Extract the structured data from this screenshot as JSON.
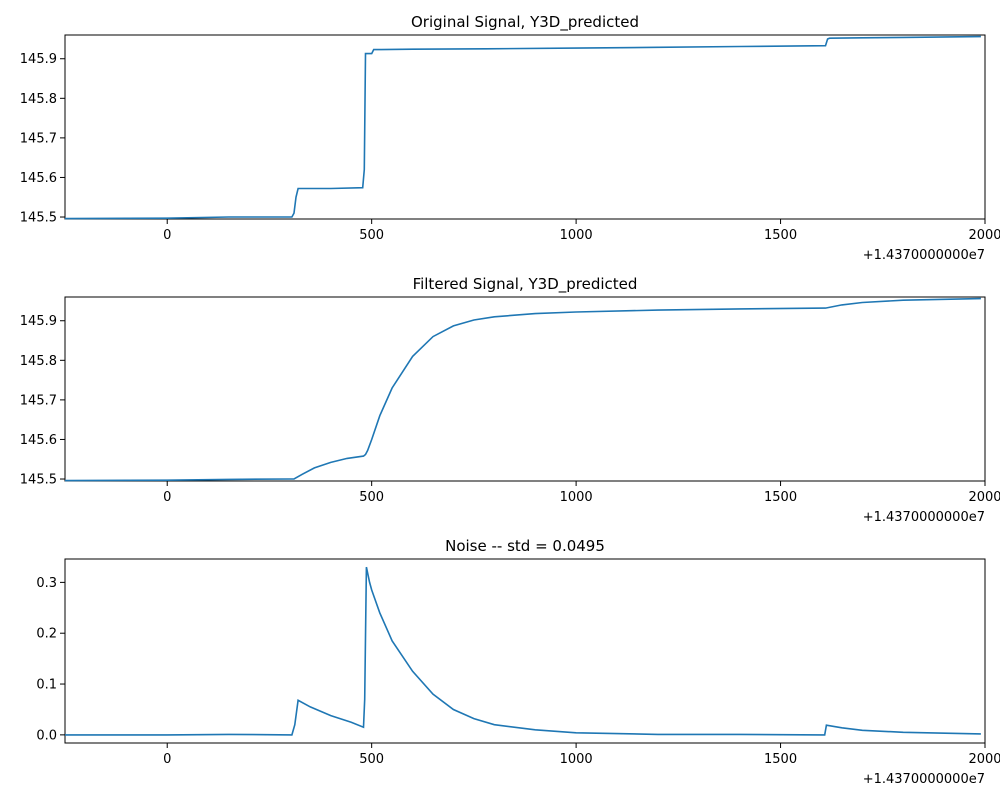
{
  "colors": {
    "line": "#1f77b4",
    "axes": "#000000",
    "background": "#ffffff"
  },
  "chart_data": [
    {
      "type": "line",
      "title": "Original Signal, Y3D_predicted",
      "xlabel": "",
      "ylabel": "",
      "x_offset_label": "+1.4370000000e7",
      "xlim": [
        -250,
        2000
      ],
      "ylim": [
        145.495,
        145.96
      ],
      "xticks": [
        0,
        500,
        1000,
        1500,
        2000
      ],
      "xtick_labels": [
        "0",
        "500",
        "1000",
        "1500",
        "2000"
      ],
      "yticks": [
        145.5,
        145.6,
        145.7,
        145.8,
        145.9
      ],
      "ytick_labels": [
        "145.5",
        "145.6",
        "145.7",
        "145.8",
        "145.9"
      ],
      "grid": false,
      "series": [
        {
          "x": [
            -250,
            0,
            150,
            250,
            305,
            310,
            315,
            320,
            400,
            478,
            482,
            485,
            490,
            500,
            505,
            600,
            780,
            1000,
            1200,
            1400,
            1610,
            1615,
            1620,
            1700,
            1800,
            1990
          ],
          "y": [
            145.496,
            145.497,
            145.5,
            145.5,
            145.5,
            145.51,
            145.55,
            145.572,
            145.572,
            145.574,
            145.62,
            145.913,
            145.913,
            145.913,
            145.923,
            145.924,
            145.925,
            145.927,
            145.929,
            145.931,
            145.933,
            145.95,
            145.952,
            145.953,
            145.954,
            145.956
          ]
        }
      ]
    },
    {
      "type": "line",
      "title": "Filtered Signal, Y3D_predicted",
      "xlabel": "",
      "ylabel": "",
      "x_offset_label": "+1.4370000000e7",
      "xlim": [
        -250,
        2000
      ],
      "ylim": [
        145.495,
        145.96
      ],
      "xticks": [
        0,
        500,
        1000,
        1500,
        2000
      ],
      "xtick_labels": [
        "0",
        "500",
        "1000",
        "1500",
        "2000"
      ],
      "yticks": [
        145.5,
        145.6,
        145.7,
        145.8,
        145.9
      ],
      "ytick_labels": [
        "145.5",
        "145.6",
        "145.7",
        "145.8",
        "145.9"
      ],
      "grid": false,
      "series": [
        {
          "x": [
            -250,
            0,
            150,
            300,
            310,
            330,
            360,
            400,
            440,
            480,
            485,
            490,
            500,
            520,
            550,
            600,
            650,
            700,
            750,
            800,
            900,
            1000,
            1200,
            1400,
            1610,
            1650,
            1700,
            1800,
            1990
          ],
          "y": [
            145.496,
            145.497,
            145.499,
            145.5,
            145.5,
            145.512,
            145.528,
            145.542,
            145.552,
            145.558,
            145.562,
            145.572,
            145.6,
            145.66,
            145.73,
            145.81,
            145.86,
            145.887,
            145.902,
            145.91,
            145.918,
            145.922,
            145.927,
            145.93,
            145.932,
            145.94,
            145.946,
            145.952,
            145.956
          ]
        }
      ]
    },
    {
      "type": "line",
      "title": "Noise -- std = 0.0495",
      "xlabel": "",
      "ylabel": "",
      "x_offset_label": "+1.4370000000e7",
      "xlim": [
        -250,
        2000
      ],
      "ylim": [
        -0.016,
        0.346
      ],
      "xticks": [
        0,
        500,
        1000,
        1500,
        2000
      ],
      "xtick_labels": [
        "0",
        "500",
        "1000",
        "1500",
        "2000"
      ],
      "yticks": [
        0.0,
        0.1,
        0.2,
        0.3
      ],
      "ytick_labels": [
        "0.0",
        "0.1",
        "0.2",
        "0.3"
      ],
      "grid": false,
      "series": [
        {
          "x": [
            -250,
            0,
            150,
            305,
            312,
            320,
            350,
            400,
            450,
            480,
            483,
            487,
            495,
            500,
            520,
            550,
            600,
            650,
            700,
            750,
            800,
            900,
            1000,
            1200,
            1400,
            1600,
            1608,
            1612,
            1650,
            1700,
            1800,
            1990
          ],
          "y": [
            0.0,
            0.0,
            0.001,
            0.0,
            0.02,
            0.068,
            0.055,
            0.038,
            0.025,
            0.015,
            0.07,
            0.33,
            0.3,
            0.285,
            0.24,
            0.185,
            0.125,
            0.08,
            0.05,
            0.032,
            0.02,
            0.01,
            0.004,
            0.001,
            0.001,
            0.0,
            0.0,
            0.019,
            0.014,
            0.009,
            0.005,
            0.002
          ]
        }
      ]
    }
  ]
}
